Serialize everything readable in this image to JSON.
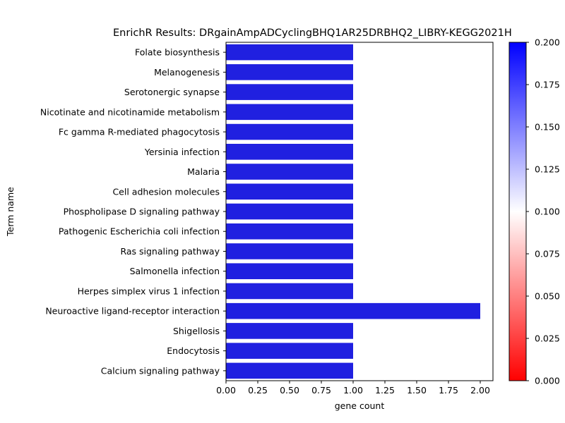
{
  "chart_data": {
    "type": "bar",
    "orientation": "horizontal",
    "title": "EnrichR Results: DRgainAmpADCyclingBHQ1AR25DRBHQ2_LIBRY-KEGG2021H",
    "xlabel": "gene count",
    "ylabel": "Term name",
    "xlim": [
      0,
      2.1
    ],
    "x_ticks": [
      "0.00",
      "0.25",
      "0.50",
      "0.75",
      "1.00",
      "1.25",
      "1.50",
      "1.75",
      "2.00"
    ],
    "categories": [
      "Folate biosynthesis",
      "Melanogenesis",
      "Serotonergic synapse",
      "Nicotinate and nicotinamide metabolism",
      "Fc gamma R-mediated phagocytosis",
      "Yersinia infection",
      "Malaria",
      "Cell adhesion molecules",
      "Phospholipase D signaling pathway",
      "Pathogenic Escherichia coli infection",
      "Ras signaling pathway",
      "Salmonella infection",
      "Herpes simplex virus 1 infection",
      "Neuroactive ligand-receptor interaction",
      "Shigellosis",
      "Endocytosis",
      "Calcium signaling pathway"
    ],
    "values": [
      1,
      1,
      1,
      1,
      1,
      1,
      1,
      1,
      1,
      1,
      1,
      1,
      1,
      2,
      1,
      1,
      1
    ],
    "bar_color": "#2020e0",
    "colorbar": {
      "range": [
        0.0,
        0.2
      ],
      "ticks": [
        "0.000",
        "0.025",
        "0.050",
        "0.075",
        "0.100",
        "0.125",
        "0.150",
        "0.175",
        "0.200"
      ],
      "colors": [
        "#ff0000",
        "#ffffff",
        "#0000ff"
      ]
    },
    "grid": false,
    "legend": "none"
  }
}
